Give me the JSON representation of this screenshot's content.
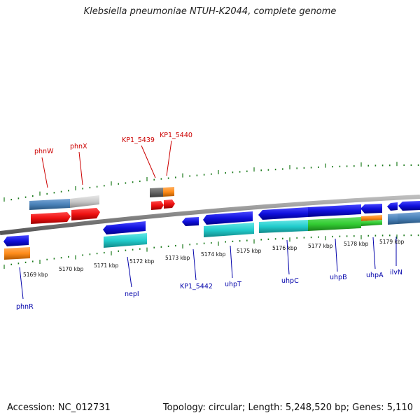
{
  "title": "Klebsiella pneumoniae NTUH-K2044, complete genome",
  "footer": {
    "accession": "Accession: NC_012731",
    "info": "Topology: circular; Length: 5,248,520 bp; Genes: 5,110"
  },
  "kbp_labels": [
    "5169 kbp",
    "5170 kbp",
    "5171 kbp",
    "5172 kbp",
    "5173 kbp",
    "5174 kbp",
    "5175 kbp",
    "5176 kbp",
    "5177 kbp",
    "5178 kbp",
    "5179 kbp"
  ],
  "top_gene_labels": [
    "phnW",
    "phnX",
    "KP1_5439",
    "KP1_5440"
  ],
  "bottom_gene_labels": [
    "phnR",
    "nepI",
    "KP1_5442",
    "uhpT",
    "uhpC",
    "uhpB",
    "uhpA",
    "ilvN"
  ],
  "colors": {
    "top_label": "#cc0000",
    "bottom_label": "#0000aa",
    "tick": "#1a7a1a",
    "gene_blue": "#1010dd",
    "gene_red": "#ee1111",
    "gene_cyan": "#22cccc",
    "gene_green": "#33cc33",
    "gene_orange": "#ff8c1a",
    "gene_steel": "#4a82b8",
    "gene_gray": "#c8c8c8",
    "backbone": "#888888"
  }
}
